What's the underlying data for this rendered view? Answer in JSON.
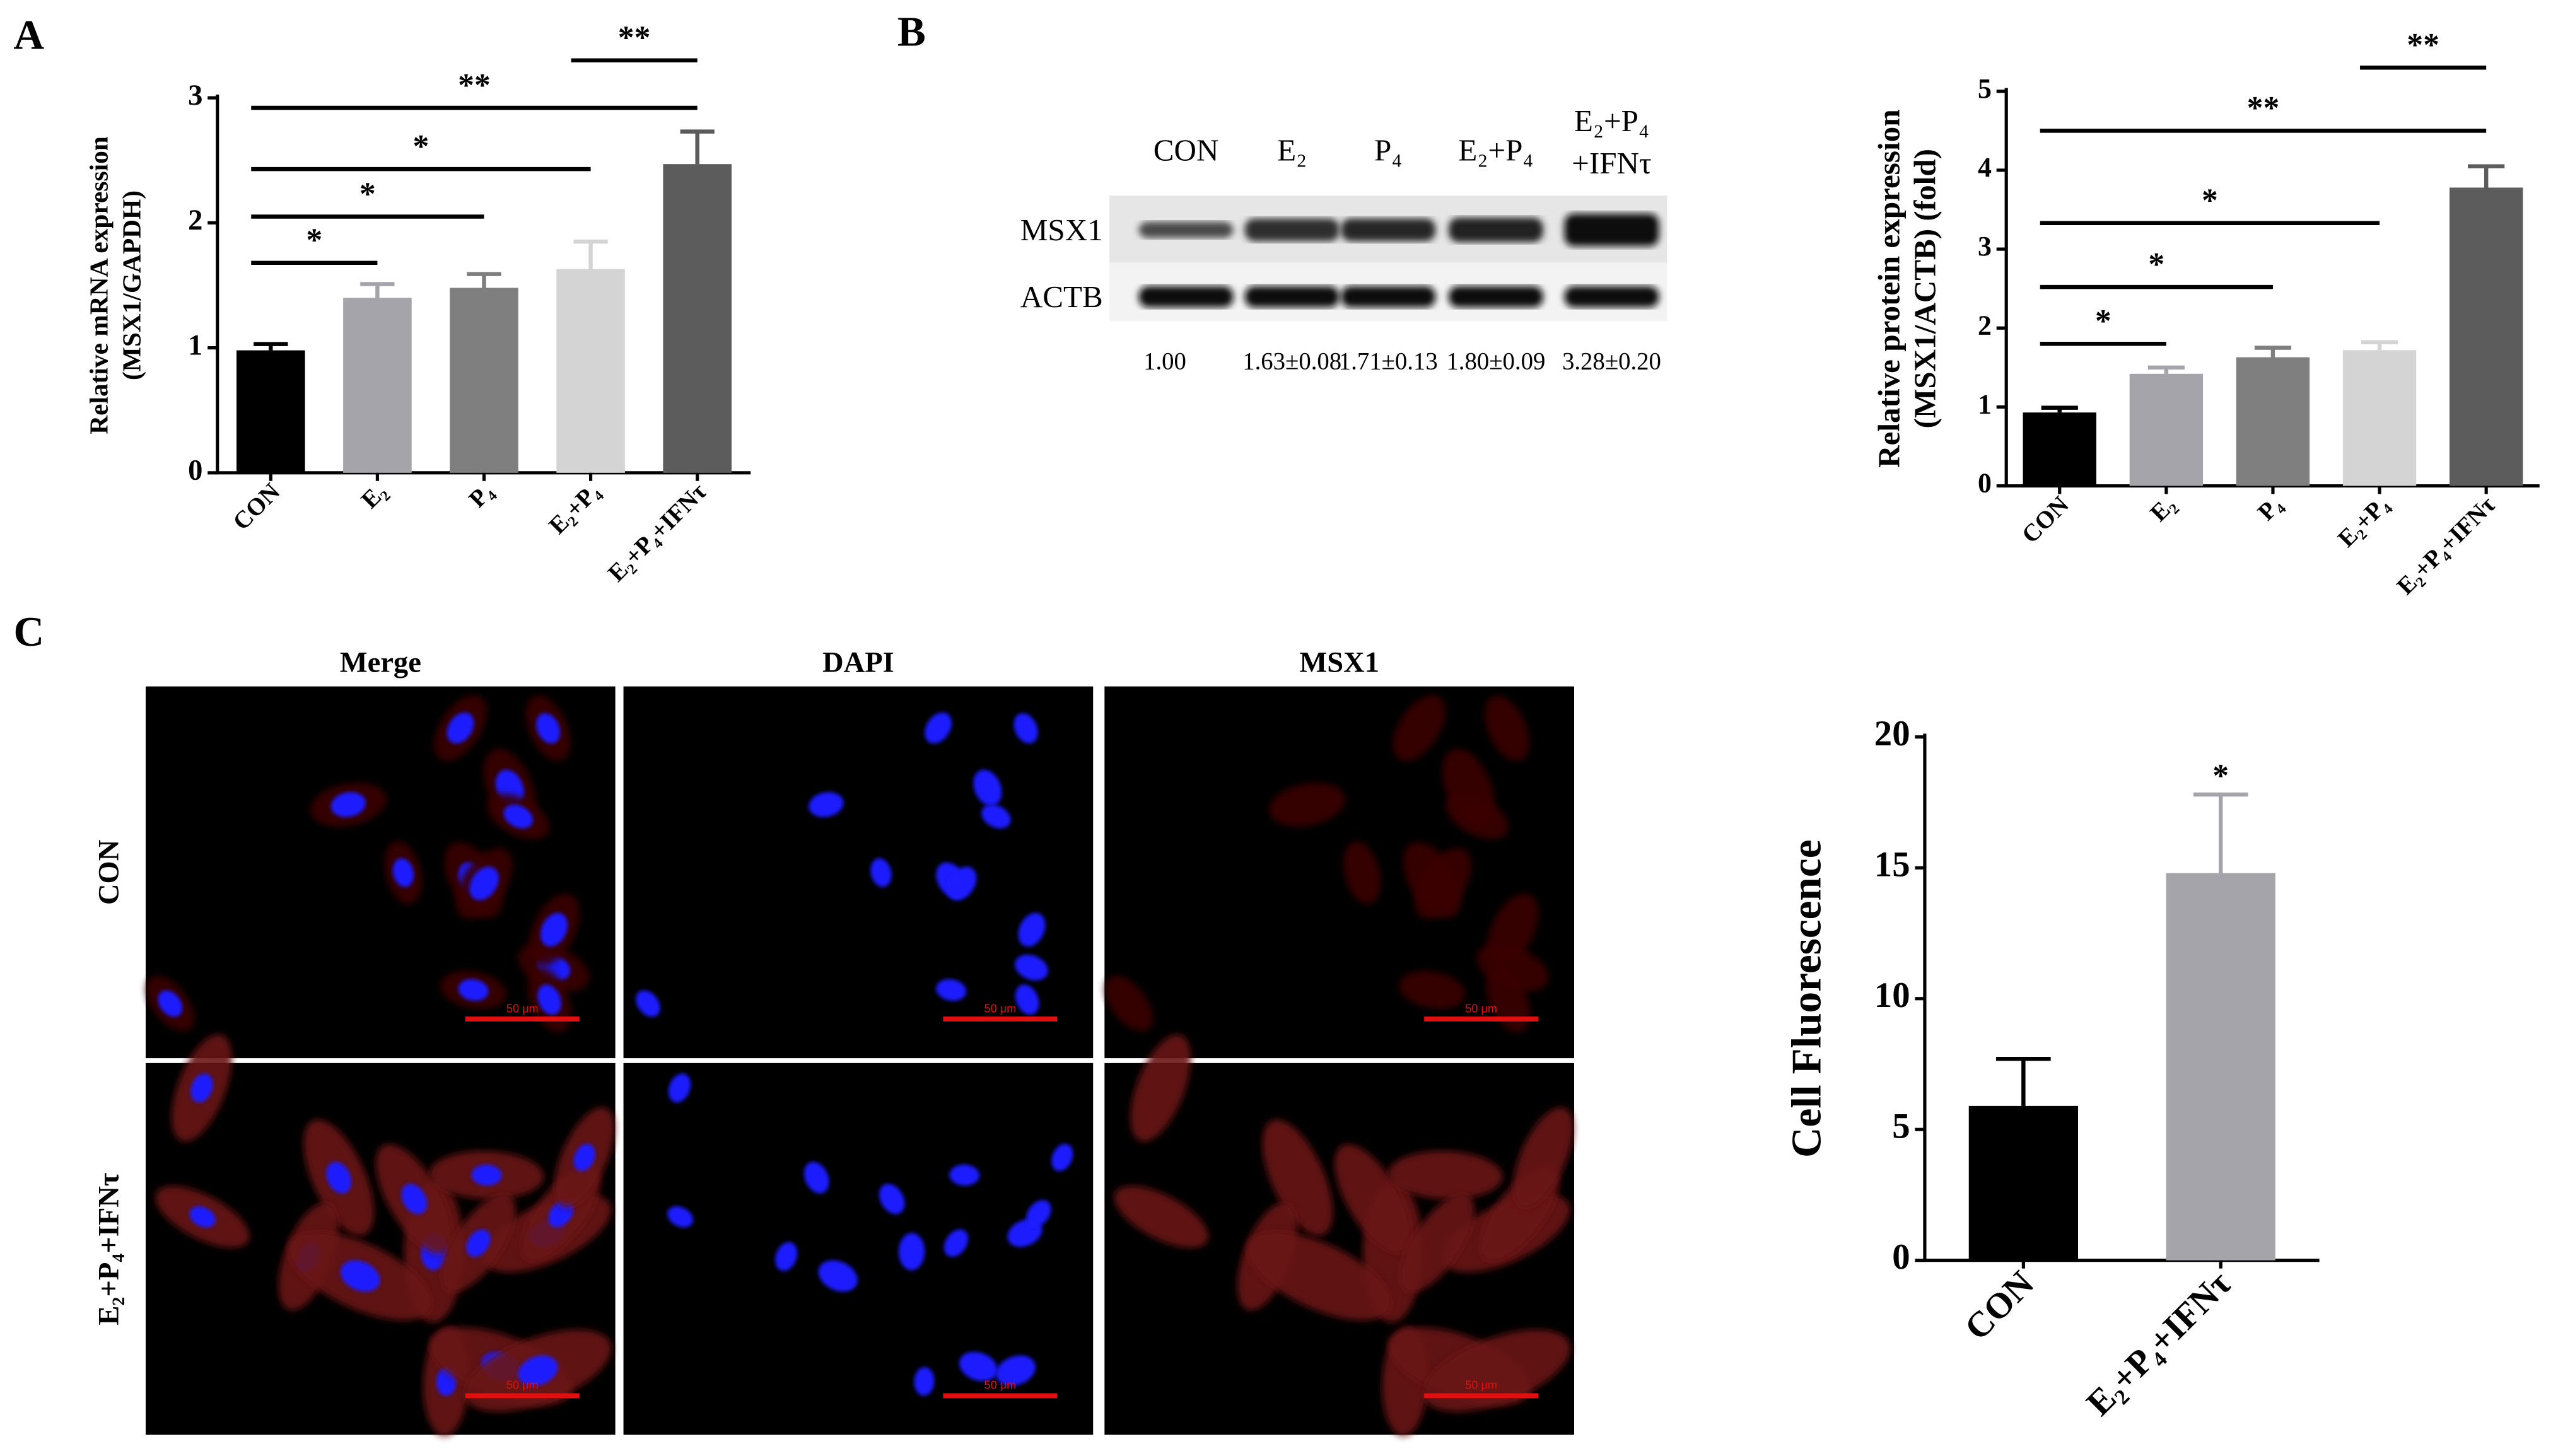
{
  "panels": [
    "A",
    "B",
    "C"
  ],
  "blot": {
    "columns": [
      [
        "CON"
      ],
      [
        "E₂"
      ],
      [
        "P₄"
      ],
      [
        "E₂+P₄"
      ],
      [
        "E₂+P₄",
        "+IFNτ"
      ]
    ],
    "rows": [
      "MSX1",
      "ACTB"
    ],
    "quantification": [
      "1.00",
      "1.63±0.08",
      "1.71±0.13",
      "1.80±0.09",
      "3.28±0.20"
    ]
  },
  "microscopy": {
    "columns": [
      "Merge",
      "DAPI",
      "MSX1"
    ],
    "rows": [
      "CON",
      "E₂+P₄+IFNτ"
    ],
    "scale_bar": "50 μm"
  },
  "chart_data": [
    {
      "type": "bar",
      "ylabel": [
        "Relative mRNA expression",
        "(MSX1/GAPDH)"
      ],
      "categories": [
        "CON",
        "E₂",
        "P₄",
        "E₂+P₄",
        "E₂+P₄+IFNτ"
      ],
      "values": [
        0.98,
        1.4,
        1.48,
        1.63,
        2.47
      ],
      "errors": [
        0.05,
        0.11,
        0.11,
        0.22,
        0.26
      ],
      "colors": [
        "#000000",
        "#a5a4ab",
        "#7f7f7f",
        "#d4d4d4",
        "#5c5c5c"
      ],
      "ylim": [
        0,
        3
      ],
      "yticks": [
        0,
        1,
        2,
        3
      ],
      "annotations": [
        {
          "text": "*",
          "from": "CON",
          "to": "E₂",
          "y": 1.68
        },
        {
          "text": "*",
          "from": "CON",
          "to": "P₄",
          "y": 2.05
        },
        {
          "text": "*",
          "from": "CON",
          "to": "E₂+P₄",
          "y": 2.43
        },
        {
          "text": "**",
          "from": "CON",
          "to": "E₂+P₄+IFNτ",
          "y": 2.92
        },
        {
          "text": "**",
          "from": "E₂+P₄",
          "to": "E₂+P₄+IFNτ",
          "y": 3.3
        }
      ]
    },
    {
      "type": "bar",
      "ylabel": [
        "Relative protein expression",
        "(MSX1/ACTB) (fold)"
      ],
      "categories": [
        "CON",
        "E₂",
        "P₄",
        "E₂+P₄",
        "E₂+P₄+IFNτ"
      ],
      "values": [
        0.93,
        1.42,
        1.63,
        1.72,
        3.78
      ],
      "errors": [
        0.06,
        0.08,
        0.12,
        0.1,
        0.27
      ],
      "colors": [
        "#000000",
        "#a5a4ab",
        "#7f7f7f",
        "#d4d4d4",
        "#5c5c5c"
      ],
      "ylim": [
        0,
        5
      ],
      "yticks": [
        0,
        1,
        2,
        3,
        4,
        5
      ],
      "annotations": [
        {
          "text": "*",
          "from": "CON",
          "to": "E₂",
          "y": 1.8
        },
        {
          "text": "*",
          "from": "CON",
          "to": "P₄",
          "y": 2.52
        },
        {
          "text": "*",
          "from": "CON",
          "to": "E₂+P₄",
          "y": 3.33
        },
        {
          "text": "**",
          "from": "CON",
          "to": "E₂+P₄+IFNτ",
          "y": 4.5
        },
        {
          "text": "**",
          "from": "E₂+P₄",
          "to": "E₂+P₄+IFNτ",
          "y": 5.3
        }
      ]
    },
    {
      "type": "bar",
      "ylabel": [
        "Cell Fluorescence"
      ],
      "categories": [
        "CON",
        "E₂+P₄+IFNτ"
      ],
      "values": [
        5.9,
        14.8
      ],
      "errors": [
        1.8,
        3.0
      ],
      "colors": [
        "#000000",
        "#a5a4ab"
      ],
      "ylim": [
        0,
        20
      ],
      "yticks": [
        0,
        5,
        10,
        15,
        20
      ],
      "annotations": [
        {
          "text": "*",
          "from": "E₂+P₄+IFNτ",
          "to": "E₂+P₄+IFNτ",
          "y": 18.4
        }
      ]
    }
  ]
}
